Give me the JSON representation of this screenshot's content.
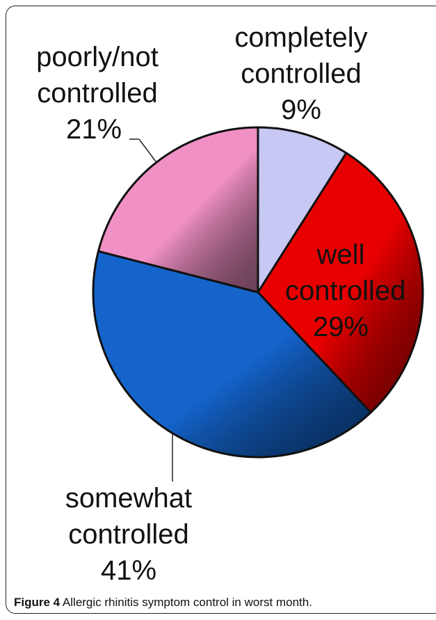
{
  "chart_data": {
    "type": "pie",
    "categories": [
      "completely controlled",
      "well controlled",
      "somewhat controlled",
      "poorly/not controlled"
    ],
    "values": [
      9,
      29,
      41,
      21
    ],
    "value_labels": [
      "9%",
      "29%",
      "41%",
      "21%"
    ],
    "colors": [
      "#c8c8f4",
      "#e80000",
      "#1464cc",
      "#f090c4"
    ]
  },
  "caption": {
    "label": "Figure 4",
    "text": "Allergic rhinitis symptom control in worst month."
  }
}
